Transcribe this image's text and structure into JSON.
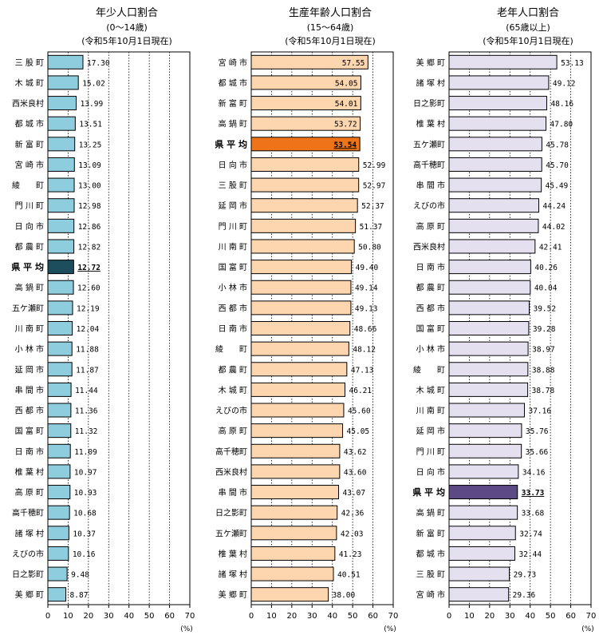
{
  "chart_data": [
    {
      "type": "bar",
      "orientation": "horizontal",
      "title": "年少人口割合",
      "subtitle": "(0～14歳)",
      "date_note": "(令和5年10月1日現在)",
      "unit": "(%)",
      "xlim": [
        0,
        70
      ],
      "xticks": [
        "0",
        "10",
        "20",
        "30",
        "40",
        "50",
        "60",
        "70"
      ],
      "highlight": "県平均",
      "bar_color": "#8ecddd",
      "highlight_color": "#1d4e5e",
      "categories": [
        "三股町",
        "木城町",
        "西米良村",
        "都城市",
        "新富町",
        "宮崎市",
        "綾町",
        "門川町",
        "日向市",
        "都農町",
        "県平均",
        "高鍋町",
        "五ケ瀬町",
        "川南町",
        "小林市",
        "延岡市",
        "串間市",
        "西都市",
        "国富町",
        "日南市",
        "椎葉村",
        "高原町",
        "高千穂町",
        "諸塚村",
        "えびの市",
        "日之影町",
        "美郷町"
      ],
      "category_labels": [
        "三 股 町",
        "木 城 町",
        "西米良村",
        "都 城 市",
        "新 富 町",
        "宮 崎 市",
        "綾　　町",
        "門 川 町",
        "日 向 市",
        "都 農 町",
        "県 平 均",
        "高 鍋 町",
        "五ケ瀬町",
        "川 南 町",
        "小 林 市",
        "延 岡 市",
        "串 間 市",
        "西 都 市",
        "国 富 町",
        "日 南 市",
        "椎 葉 村",
        "高 原 町",
        "高千穂町",
        "諸 塚 村",
        "えびの市",
        "日之影町",
        "美 郷 町"
      ],
      "values": [
        17.3,
        15.02,
        13.99,
        13.51,
        13.25,
        13.09,
        13.0,
        12.98,
        12.86,
        12.82,
        12.72,
        12.6,
        12.19,
        12.04,
        11.88,
        11.87,
        11.44,
        11.36,
        11.32,
        11.09,
        10.97,
        10.93,
        10.68,
        10.37,
        10.16,
        9.48,
        8.87
      ],
      "value_labels": [
        "17.30",
        "15.02",
        "13.99",
        "13.51",
        "13.25",
        "13.09",
        "13.00",
        "12.98",
        "12.86",
        "12.82",
        "12.72",
        "12.60",
        "12.19",
        "12.04",
        "11.88",
        "11.87",
        "11.44",
        "11.36",
        "11.32",
        "11.09",
        "10.97",
        "10.93",
        "10.68",
        "10.37",
        "10.16",
        "9.48",
        "8.87"
      ]
    },
    {
      "type": "bar",
      "orientation": "horizontal",
      "title": "生産年齢人口割合",
      "subtitle": "(15～64歳)",
      "date_note": "(令和5年10月1日現在)",
      "unit": "(%)",
      "xlim": [
        0,
        70
      ],
      "xticks": [
        "0",
        "10",
        "20",
        "30",
        "40",
        "50",
        "60",
        "70"
      ],
      "highlight": "県平均",
      "bar_color": "#fdd6b0",
      "highlight_color": "#ee7319",
      "categories": [
        "宮崎市",
        "都城市",
        "新富町",
        "高鍋町",
        "県平均",
        "日向市",
        "三股町",
        "延岡市",
        "門川町",
        "川南町",
        "国富町",
        "小林市",
        "西都市",
        "日南市",
        "綾町",
        "都農町",
        "木城町",
        "えびの市",
        "高原町",
        "高千穂町",
        "西米良村",
        "串間市",
        "日之影町",
        "五ケ瀬町",
        "椎葉村",
        "諸塚村",
        "美郷町"
      ],
      "category_labels": [
        "宮 崎 市",
        "都 城 市",
        "新 富 町",
        "高 鍋 町",
        "県 平 均",
        "日 向 市",
        "三 股 町",
        "延 岡 市",
        "門 川 町",
        "川 南 町",
        "国 富 町",
        "小 林 市",
        "西 都 市",
        "日 南 市",
        "綾　　町",
        "都 農 町",
        "木 城 町",
        "えびの市",
        "高 原 町",
        "高千穂町",
        "西米良村",
        "串 間 市",
        "日之影町",
        "五ケ瀬町",
        "椎 葉 村",
        "諸 塚 村",
        "美 郷 町"
      ],
      "values": [
        57.55,
        54.05,
        54.01,
        53.72,
        53.54,
        52.99,
        52.97,
        52.37,
        51.37,
        50.8,
        49.4,
        49.14,
        49.13,
        48.66,
        48.12,
        47.13,
        46.21,
        45.6,
        45.05,
        43.62,
        43.6,
        43.07,
        42.36,
        42.03,
        41.23,
        40.51,
        38.0
      ],
      "value_labels": [
        "57.55",
        "54.05",
        "54.01",
        "53.72",
        "53.54",
        "52.99",
        "52.97",
        "52.37",
        "51.37",
        "50.80",
        "49.40",
        "49.14",
        "49.13",
        "48.66",
        "48.12",
        "47.13",
        "46.21",
        "45.60",
        "45.05",
        "43.62",
        "43.60",
        "43.07",
        "42.36",
        "42.03",
        "41.23",
        "40.51",
        "38.00"
      ]
    },
    {
      "type": "bar",
      "orientation": "horizontal",
      "title": "老年人口割合",
      "subtitle": "(65歳以上)",
      "date_note": "(令和5年10月1日現在)",
      "unit": "(%)",
      "xlim": [
        0,
        70
      ],
      "xticks": [
        "0",
        "10",
        "20",
        "30",
        "40",
        "50",
        "60",
        "70"
      ],
      "highlight": "県平均",
      "bar_color": "#e4e0f0",
      "highlight_color": "#5b4a86",
      "categories": [
        "美郷町",
        "諸塚村",
        "日之影町",
        "椎葉村",
        "五ケ瀬町",
        "高千穂町",
        "串間市",
        "えびの市",
        "高原町",
        "西米良村",
        "日南市",
        "都農町",
        "西都市",
        "国富町",
        "小林市",
        "綾町",
        "木城町",
        "川南町",
        "延岡市",
        "門川町",
        "日向市",
        "県平均",
        "高鍋町",
        "新富町",
        "都城市",
        "三股町",
        "宮崎市"
      ],
      "category_labels": [
        "美 郷 町",
        "諸 塚 村",
        "日之影町",
        "椎 葉 村",
        "五ケ瀬町",
        "高千穂町",
        "串 間 市",
        "えびの市",
        "高 原 町",
        "西米良村",
        "日 南 市",
        "都 農 町",
        "西 都 市",
        "国 富 町",
        "小 林 市",
        "綾　　町",
        "木 城 町",
        "川 南 町",
        "延 岡 市",
        "門 川 町",
        "日 向 市",
        "県 平 均",
        "高 鍋 町",
        "新 富 町",
        "都 城 市",
        "三 股 町",
        "宮 崎 市"
      ],
      "values": [
        53.13,
        49.12,
        48.16,
        47.8,
        45.78,
        45.7,
        45.49,
        44.24,
        44.02,
        42.41,
        40.26,
        40.04,
        39.52,
        39.28,
        38.97,
        38.88,
        38.78,
        37.16,
        35.76,
        35.66,
        34.16,
        33.73,
        33.68,
        32.74,
        32.44,
        29.73,
        29.36
      ],
      "value_labels": [
        "53.13",
        "49.12",
        "48.16",
        "47.80",
        "45.78",
        "45.70",
        "45.49",
        "44.24",
        "44.02",
        "42.41",
        "40.26",
        "40.04",
        "39.52",
        "39.28",
        "38.97",
        "38.88",
        "38.78",
        "37.16",
        "35.76",
        "35.66",
        "34.16",
        "33.73",
        "33.68",
        "32.74",
        "32.44",
        "29.73",
        "29.36"
      ]
    }
  ]
}
